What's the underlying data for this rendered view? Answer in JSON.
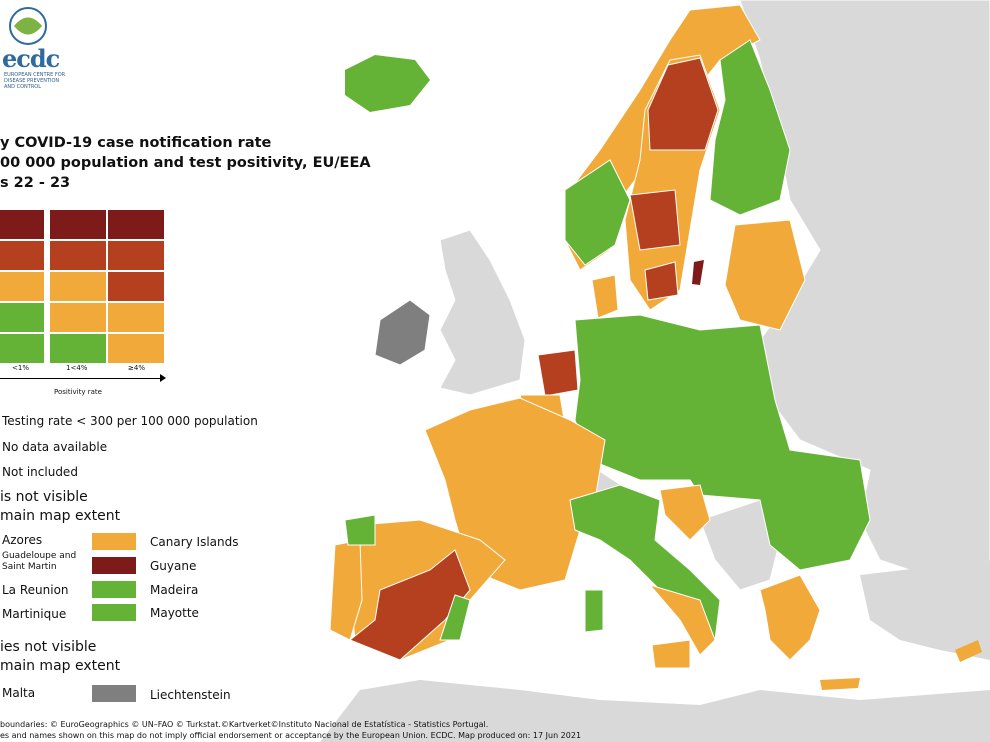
{
  "logo": {
    "text": "ecdc",
    "tagline": "EUROPEAN CENTRE FOR DISEASE PREVENTION AND CONTROL"
  },
  "title": {
    "line1": "y COVID-19 case notification rate",
    "line2": "00 000 population and test positivity, EU/EEA",
    "line3": "s 22 - 23"
  },
  "colors": {
    "dark_red": "#7d1a1a",
    "red": "#b5401f",
    "orange": "#f1a93a",
    "green": "#64b336",
    "grey": "#7f7f7f",
    "light_grey": "#d9d9d9",
    "sea": "#ffffff"
  },
  "matrix": {
    "rows": [
      [
        "dark_red",
        "dark_red",
        "dark_red"
      ],
      [
        "red",
        "red",
        "red"
      ],
      [
        "orange",
        "orange",
        "red"
      ],
      [
        "green",
        "orange",
        "orange"
      ],
      [
        "green",
        "green",
        "orange"
      ]
    ],
    "columns": [
      "<1%",
      "1<4%",
      "≥4%"
    ],
    "axis_title": "Positivity rate"
  },
  "legend": {
    "testing_rate": "Testing rate < 300 per 100 000 population",
    "no_data": "No data available",
    "not_included": "Not included",
    "section1_line1": "is not visible",
    "section1_line2": "main map extent",
    "section2_line1": "ies not visible",
    "section2_line2": "main map extent"
  },
  "regions": [
    {
      "label": "Azores",
      "color": "green"
    },
    {
      "label": "Canary Islands",
      "color": "orange"
    },
    {
      "label": "Guadeloupe and Saint Martin",
      "color": "orange"
    },
    {
      "label": "Guyane",
      "color": "dark_red"
    },
    {
      "label": "La Reunion",
      "color": "orange"
    },
    {
      "label": "Madeira",
      "color": "green"
    },
    {
      "label": "Martinique",
      "color": "orange"
    },
    {
      "label": "Mayotte",
      "color": "green"
    }
  ],
  "small_countries": [
    {
      "label": "Malta",
      "color": "orange"
    },
    {
      "label": "Liechtenstein",
      "color": "grey"
    }
  ],
  "footer": {
    "line1": "boundaries: © EuroGeographics © UN–FAO © Turkstat.©Kartverket©Instituto Nacional de Estatística - Statistics Portugal.",
    "line2": "es and names shown on this map do not imply official endorsement or acceptance by the European Union. ECDC. Map produced on: 17 Jun 2021"
  }
}
